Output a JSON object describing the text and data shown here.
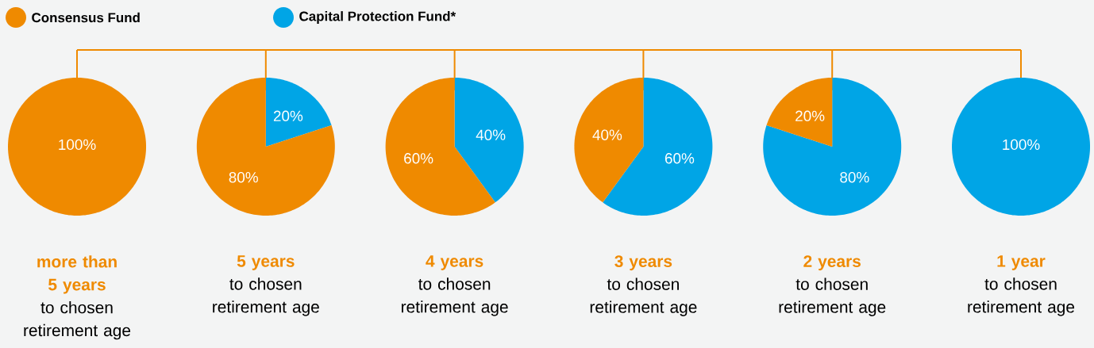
{
  "chart_data": [
    {
      "type": "pie",
      "title": "more than 5 years",
      "subtitle": "to chosen retirement age",
      "categories": [
        "Consensus Fund",
        "Capital Protection Fund*"
      ],
      "values": [
        100,
        0
      ],
      "colors": [
        "#ef8a00",
        "#00a5e6"
      ],
      "value_labels": [
        "100%",
        null
      ],
      "legend": "top"
    },
    {
      "type": "pie",
      "title": "5 years",
      "subtitle": "to chosen retirement age",
      "categories": [
        null,
        null
      ],
      "values": [
        80,
        20
      ],
      "colors": [
        "#ef8a00",
        "#00a5e6"
      ],
      "value_labels": [
        "80%",
        "20%"
      ]
    },
    {
      "type": "pie",
      "title": "4 years",
      "subtitle": "to chosen retirement age",
      "categories": [
        null,
        null
      ],
      "values": [
        60,
        40
      ],
      "colors": [
        "#ef8a00",
        "#00a5e6"
      ],
      "value_labels": [
        "60%",
        "40%"
      ]
    },
    {
      "type": "pie",
      "title": "3 years",
      "subtitle": "to chosen retirement age",
      "categories": [
        null,
        null
      ],
      "values": [
        40,
        60
      ],
      "colors": [
        "#ef8a00",
        "#00a5e6"
      ],
      "value_labels": [
        "40%",
        "60%"
      ]
    },
    {
      "type": "pie",
      "title": "2 years",
      "subtitle": "to chosen retirement age",
      "categories": [
        null,
        null
      ],
      "values": [
        20,
        80
      ],
      "colors": [
        "#ef8a00",
        "#00a5e6"
      ],
      "value_labels": [
        "20%",
        "80%"
      ]
    },
    {
      "type": "pie",
      "title": "1 year",
      "subtitle": "to chosen retirement age",
      "categories": [
        null,
        null
      ],
      "values": [
        0,
        100
      ],
      "colors": [
        "#ef8a00",
        "#00a5e6"
      ],
      "value_labels": [
        null,
        "100%"
      ]
    }
  ]
}
